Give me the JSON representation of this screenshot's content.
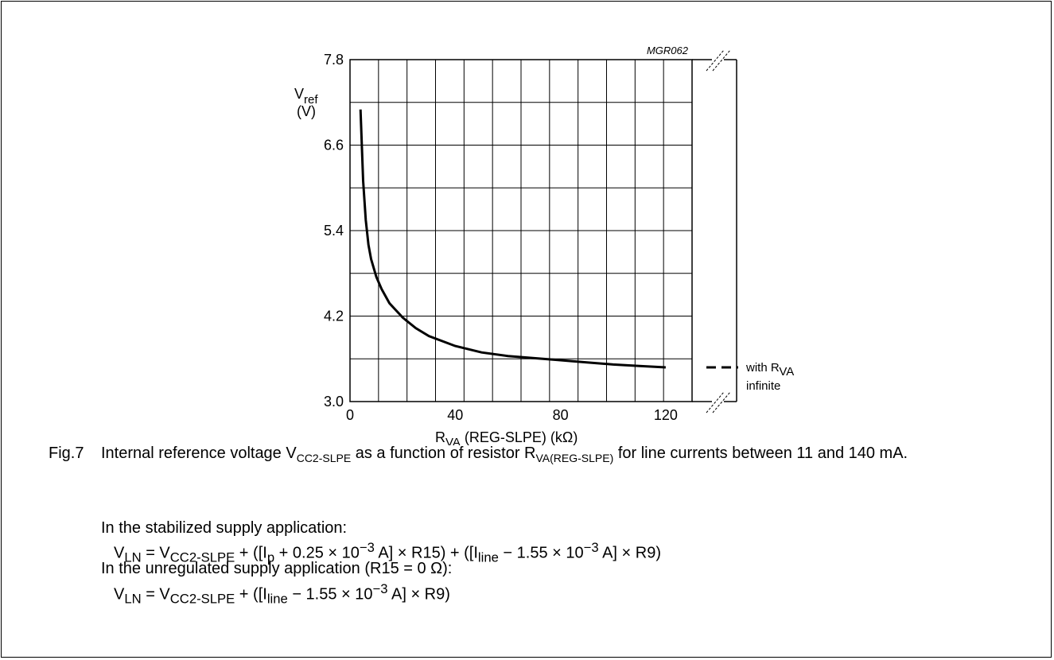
{
  "figure": {
    "code": "MGR062",
    "number": "Fig.7",
    "caption": {
      "t1": "Internal reference voltage V",
      "s1": "CC2-SLPE",
      "t2": " as a function of resistor R",
      "s2": "VA(REG-SLPE)",
      "t3": " for line currents between 11 and 140 mA."
    }
  },
  "notes": {
    "stab_intro": "In the stabilized supply application:",
    "unreg_intro": "In the unregulated supply application (R15 = 0 Ω):",
    "eq1": {
      "a": "V",
      "b": "LN",
      "c": " = V",
      "d": "CC2-SLPE",
      "e": " + ([I",
      "f": "p",
      "g": " + 0.25 × 10",
      "h": "−3",
      "i": " A] × R15) + ([I",
      "j": "line",
      "k": " − 1.55 × 10",
      "l": "−3",
      "m": " A] × R9)"
    },
    "eq2": {
      "a": "V",
      "b": "LN",
      "c": " = V",
      "d": "CC2-SLPE",
      "e": " + ([I",
      "f": "line",
      "g": " − 1.55 × 10",
      "h": "−3",
      "i": " A] × R9)"
    }
  },
  "chart_data": {
    "type": "line",
    "x_ticks": [
      "0",
      "40",
      "80",
      "120"
    ],
    "y_ticks": [
      "3.0",
      "4.2",
      "5.4",
      "6.6",
      "7.8"
    ],
    "xlim": [
      0,
      130
    ],
    "ylim": [
      3.0,
      7.8
    ],
    "grid": true,
    "xlabel": {
      "main": "R",
      "sub": "VA",
      "rest": " (REG-SLPE) (kΩ)"
    },
    "ylabel": {
      "main": "V",
      "sub": "ref",
      "unit": "(V)"
    },
    "series": [
      {
        "style": "solid",
        "x": [
          4,
          5,
          6,
          7,
          8,
          10,
          12,
          15,
          20,
          25,
          30,
          40,
          50,
          60,
          70,
          80,
          90,
          100,
          110,
          120
        ],
        "y": [
          7.1,
          6.1,
          5.55,
          5.2,
          5.0,
          4.75,
          4.58,
          4.38,
          4.18,
          4.03,
          3.92,
          3.78,
          3.69,
          3.64,
          3.61,
          3.58,
          3.55,
          3.52,
          3.5,
          3.48
        ]
      }
    ],
    "annotation": {
      "line1": "with R",
      "sub": "VA",
      "line2": "infinite",
      "value": 3.48
    }
  }
}
